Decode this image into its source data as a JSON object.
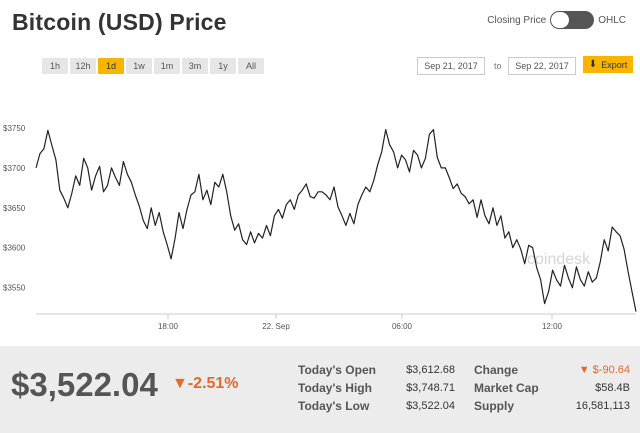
{
  "header": {
    "title": "Bitcoin (USD) Price",
    "toggle_left": "Closing Price",
    "toggle_right": "OHLC"
  },
  "ranges": [
    "1h",
    "12h",
    "1d",
    "1w",
    "1m",
    "3m",
    "1y",
    "All"
  ],
  "active_range": "1d",
  "date_from": "Sep 21, 2017",
  "date_to_label": "to",
  "date_to": "Sep 22, 2017",
  "export_label": "Export",
  "watermark": "coindesk",
  "colors": {
    "accent": "#f7b500",
    "negative": "#e8672a",
    "line": "#222222"
  },
  "chart_data": {
    "type": "line",
    "title": "",
    "xlabel": "",
    "ylabel": "",
    "ylim": [
      3517,
      3775
    ],
    "y_ticks": [
      3550,
      3600,
      3650,
      3700,
      3750
    ],
    "y_tick_labels": [
      "$3550",
      "$3600",
      "$3650",
      "$3700",
      "$3750"
    ],
    "x_ticks": [
      0.22,
      0.4,
      0.61,
      0.86
    ],
    "x_tick_labels": [
      "18:00",
      "22. Sep",
      "06:00",
      "12:00"
    ],
    "series": [
      {
        "values": [
          3700,
          3718,
          3724,
          3747,
          3728,
          3710,
          3672,
          3662,
          3650,
          3668,
          3690,
          3678,
          3712,
          3700,
          3672,
          3690,
          3702,
          3670,
          3678,
          3700,
          3688,
          3678,
          3708,
          3692,
          3682,
          3666,
          3652,
          3634,
          3624,
          3650,
          3628,
          3644,
          3620,
          3604,
          3586,
          3612,
          3644,
          3624,
          3648,
          3666,
          3670,
          3692,
          3660,
          3672,
          3654,
          3682,
          3676,
          3692,
          3670,
          3640,
          3622,
          3630,
          3610,
          3604,
          3620,
          3606,
          3618,
          3612,
          3628,
          3615,
          3640,
          3648,
          3637,
          3654,
          3660,
          3648,
          3666,
          3672,
          3680,
          3664,
          3662,
          3670,
          3670,
          3666,
          3660,
          3676,
          3651,
          3640,
          3628,
          3643,
          3630,
          3654,
          3666,
          3676,
          3670,
          3684,
          3704,
          3720,
          3748,
          3729,
          3720,
          3700,
          3716,
          3710,
          3695,
          3722,
          3716,
          3700,
          3712,
          3742,
          3748,
          3713,
          3700,
          3700,
          3688,
          3674,
          3680,
          3668,
          3664,
          3655,
          3660,
          3638,
          3660,
          3640,
          3630,
          3650,
          3628,
          3640,
          3612,
          3620,
          3600,
          3610,
          3598,
          3580,
          3603,
          3600,
          3575,
          3560,
          3530,
          3545,
          3572,
          3560,
          3552,
          3578,
          3562,
          3550,
          3576,
          3560,
          3552,
          3570,
          3557,
          3562,
          3582,
          3610,
          3596,
          3626,
          3620,
          3615,
          3598,
          3570,
          3545,
          3520
        ]
      }
    ]
  },
  "summary": {
    "price": "$3,522.04",
    "change_pct": "▼-2.51%",
    "today_open_label": "Today's Open",
    "today_open": "$3,612.68",
    "today_high_label": "Today's High",
    "today_high": "$3,748.71",
    "today_low_label": "Today's Low",
    "today_low": "$3,522.04",
    "change_label": "Change",
    "change": "▼ $-90.64",
    "market_cap_label": "Market Cap",
    "market_cap": "$58.4B",
    "supply_label": "Supply",
    "supply": "16,581,113"
  }
}
